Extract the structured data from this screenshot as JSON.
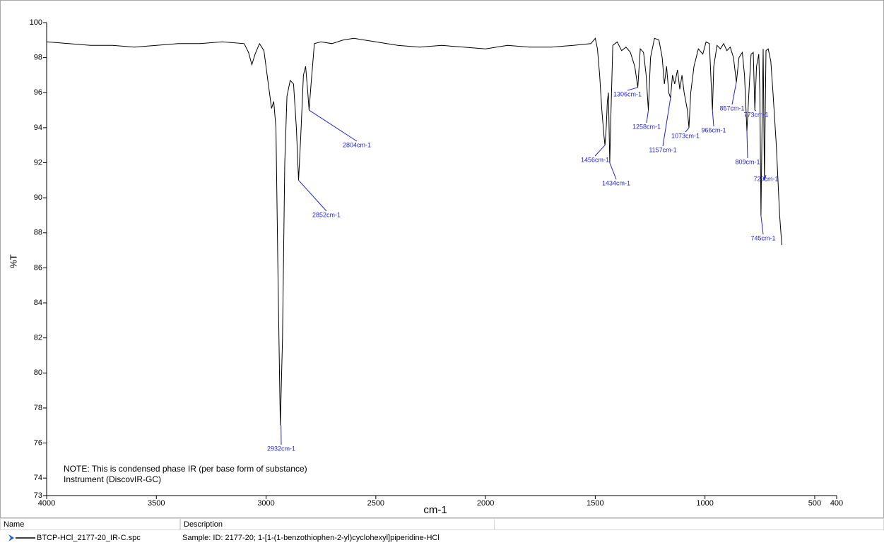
{
  "chart_data": {
    "type": "line",
    "xlabel": "cm-1",
    "ylabel": "%T",
    "xlim": [
      4000,
      400
    ],
    "ylim": [
      73,
      100
    ],
    "xticks": [
      4000,
      3500,
      3000,
      2500,
      2000,
      1500,
      1000,
      500,
      400
    ],
    "yticks": [
      73,
      74,
      76,
      78,
      80,
      82,
      84,
      86,
      88,
      90,
      92,
      94,
      96,
      98,
      100
    ],
    "grid": false,
    "x": [
      4000,
      3900,
      3800,
      3700,
      3600,
      3500,
      3400,
      3300,
      3200,
      3100,
      3080,
      3065,
      3050,
      3030,
      3010,
      2990,
      2975,
      2965,
      2955,
      2945,
      2935,
      2925,
      2915,
      2905,
      2890,
      2875,
      2862,
      2852,
      2842,
      2830,
      2820,
      2810,
      2804,
      2795,
      2780,
      2750,
      2700,
      2650,
      2600,
      2500,
      2400,
      2300,
      2200,
      2100,
      2000,
      1900,
      1800,
      1700,
      1600,
      1520,
      1500,
      1490,
      1480,
      1470,
      1460,
      1456,
      1450,
      1445,
      1440,
      1434,
      1428,
      1420,
      1400,
      1380,
      1360,
      1340,
      1320,
      1306,
      1295,
      1280,
      1268,
      1258,
      1248,
      1230,
      1210,
      1195,
      1185,
      1175,
      1165,
      1157,
      1148,
      1138,
      1125,
      1115,
      1105,
      1095,
      1080,
      1073,
      1065,
      1050,
      1030,
      1010,
      995,
      980,
      970,
      966,
      960,
      945,
      930,
      915,
      900,
      885,
      870,
      857,
      845,
      830,
      820,
      809,
      800,
      790,
      780,
      773,
      765,
      755,
      750,
      745,
      740,
      735,
      729,
      722,
      712,
      700,
      690,
      675,
      660,
      650
    ],
    "series": [
      {
        "name": "BTCP-HCl_2177-20_IR-C.spc",
        "color": "#000000",
        "values": [
          98.9,
          98.8,
          98.7,
          98.7,
          98.6,
          98.7,
          98.8,
          98.8,
          98.9,
          98.8,
          98.3,
          97.6,
          98.2,
          98.8,
          98.4,
          96.5,
          95.1,
          95.5,
          94,
          85,
          77,
          82,
          92,
          95.8,
          96.7,
          96.5,
          94,
          91,
          93.5,
          97,
          97.5,
          96,
          95,
          96.5,
          98.8,
          98.9,
          98.8,
          99,
          99.1,
          98.9,
          98.7,
          98.6,
          98.7,
          98.6,
          98.5,
          98.7,
          98.6,
          98.6,
          98.7,
          98.8,
          99.1,
          98.5,
          97,
          95,
          93.5,
          93,
          94,
          95.5,
          96,
          92,
          95,
          98.7,
          98.9,
          98.4,
          98.6,
          98.3,
          97.5,
          96.3,
          98.5,
          98.3,
          97,
          95,
          98,
          99.1,
          99,
          98,
          96.5,
          97.5,
          96,
          95.7,
          97,
          96.5,
          97.3,
          96.2,
          97,
          96,
          95,
          94,
          96,
          97.5,
          98.5,
          98.2,
          98.9,
          98.8,
          96,
          95,
          97.5,
          98.7,
          98.5,
          98.8,
          98.4,
          98.6,
          98,
          96.6,
          98,
          98.3,
          97,
          93.8,
          96,
          98.2,
          98.3,
          95,
          97.5,
          98.2,
          96,
          89,
          94,
          98.5,
          91,
          98.4,
          98.5,
          97.8,
          96,
          93,
          89,
          87.3
        ]
      }
    ],
    "annotation_color": "#1f1fdf",
    "annotations": [
      {
        "x": 2932,
        "y": 77,
        "label": "2932cm-1"
      },
      {
        "x": 2852,
        "y": 91,
        "label": "2852cm-1"
      },
      {
        "x": 2804,
        "y": 95,
        "label": "2804cm-1"
      },
      {
        "x": 1456,
        "y": 93,
        "label": "1456cm-1"
      },
      {
        "x": 1434,
        "y": 92,
        "label": "1434cm-1"
      },
      {
        "x": 1306,
        "y": 96.3,
        "label": "1306cm-1"
      },
      {
        "x": 1258,
        "y": 95,
        "label": "1258cm-1"
      },
      {
        "x": 1157,
        "y": 95.7,
        "label": "1157cm-1"
      },
      {
        "x": 1073,
        "y": 94,
        "label": "1073cm-1"
      },
      {
        "x": 966,
        "y": 95,
        "label": "966cm-1"
      },
      {
        "x": 857,
        "y": 96.6,
        "label": "857cm-1"
      },
      {
        "x": 809,
        "y": 93.8,
        "label": "809cm-1"
      },
      {
        "x": 773,
        "y": 95,
        "label": "773cm-1"
      },
      {
        "x": 745,
        "y": 89,
        "label": "745cm-1"
      },
      {
        "x": 729,
        "y": 91,
        "label": "729cm-1"
      }
    ],
    "notes": [
      "NOTE: This is condensed phase IR (per base form of substance)",
      "Instrument (DiscovIR-GC)"
    ]
  },
  "table": {
    "headers": [
      "Name",
      "Description"
    ],
    "description": "Sample: ID: 2177-20; 1-[1-(1-benzothiophen-2-yl)cyclohexyl]piperidine-HCl"
  }
}
